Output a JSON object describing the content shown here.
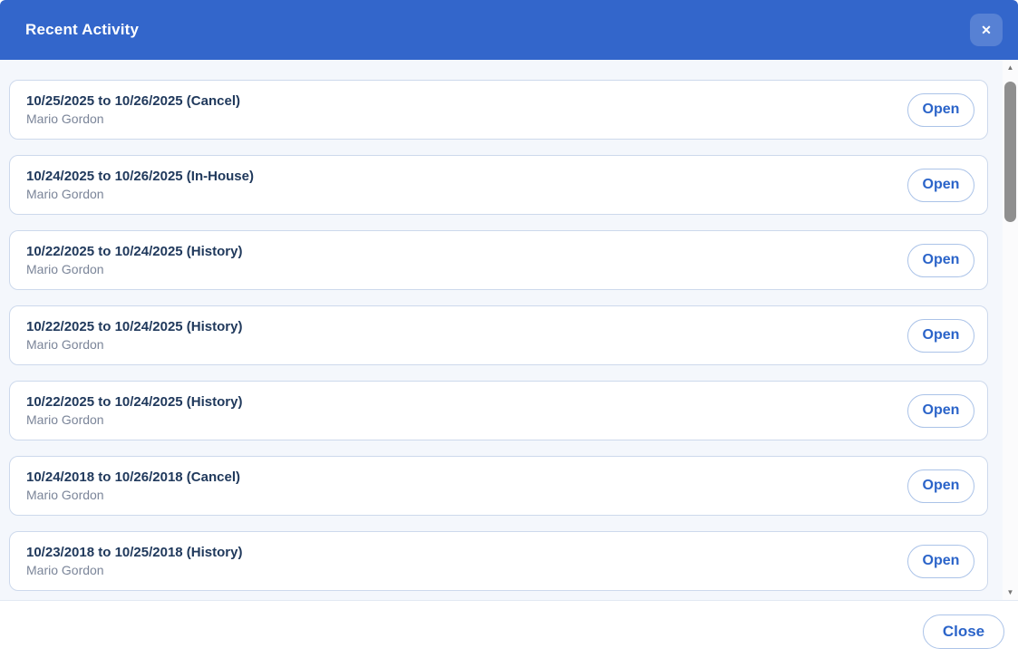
{
  "modal": {
    "title": "Recent Activity",
    "close_button_label": "Close"
  },
  "icons": {
    "close": "✕",
    "scroll_up": "▲",
    "scroll_down": "▼"
  },
  "activity": {
    "items": [
      {
        "title": "10/25/2025 to 10/26/2025 (Cancel)",
        "subtitle": "Mario Gordon",
        "action": "Open"
      },
      {
        "title": "10/24/2025 to 10/26/2025 (In-House)",
        "subtitle": "Mario Gordon",
        "action": "Open"
      },
      {
        "title": "10/22/2025 to 10/24/2025 (History)",
        "subtitle": "Mario Gordon",
        "action": "Open"
      },
      {
        "title": "10/22/2025 to 10/24/2025 (History)",
        "subtitle": "Mario Gordon",
        "action": "Open"
      },
      {
        "title": "10/22/2025 to 10/24/2025 (History)",
        "subtitle": "Mario Gordon",
        "action": "Open"
      },
      {
        "title": "10/24/2018 to 10/26/2018 (Cancel)",
        "subtitle": "Mario Gordon",
        "action": "Open"
      },
      {
        "title": "10/23/2018 to 10/25/2018 (History)",
        "subtitle": "Mario Gordon",
        "action": "Open"
      }
    ]
  },
  "colors": {
    "header_blue": "#3366cb",
    "accent_text_blue": "#2b64c9",
    "button_border_blue": "#abc3e8",
    "card_title_navy": "#20395c",
    "subtitle_gray": "#7b8599",
    "body_background": "#f4f7fc",
    "card_border": "#cdd9ec",
    "scroll_thumb_gray": "#8f8f8f"
  }
}
